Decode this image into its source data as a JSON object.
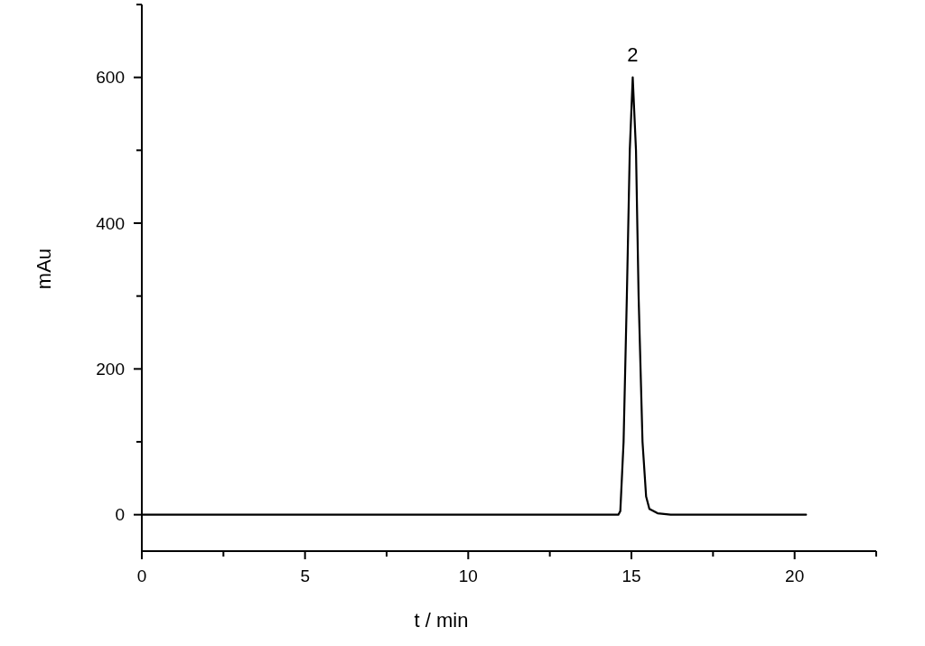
{
  "chart_data": {
    "type": "line",
    "xlabel": "t / min",
    "ylabel": "mAu",
    "x": [
      0,
      14.6,
      14.66,
      14.76,
      14.86,
      14.95,
      15.04,
      15.14,
      15.22,
      15.34,
      15.45,
      15.55,
      15.8,
      16.2,
      20.35
    ],
    "series": [
      {
        "color": "#000000",
        "values": [
          0,
          0,
          5,
          100,
          300,
          500,
          600,
          500,
          300,
          100,
          25,
          8,
          2,
          0,
          0
        ]
      }
    ],
    "xlim": [
      0,
      22.5
    ],
    "xticks": [
      0,
      {
        "value": 2.5,
        "label": null
      },
      5,
      {
        "value": 7.5,
        "label": null
      },
      10,
      {
        "value": 12.5,
        "label": null
      },
      15,
      {
        "value": 17.5,
        "label": null
      },
      20,
      {
        "value": 22.5,
        "label": null
      }
    ],
    "ylim": [
      -50,
      700
    ],
    "yticks": [
      0,
      {
        "value": 100,
        "label": null
      },
      200,
      {
        "value": 300,
        "label": null
      },
      400,
      {
        "value": 500,
        "label": null
      },
      600,
      {
        "value": 700,
        "label": null
      }
    ],
    "annotations": [
      {
        "text": "2",
        "x": 15.04,
        "y": 600
      }
    ],
    "grid": false,
    "marker": "none",
    "line_style": "solid"
  }
}
